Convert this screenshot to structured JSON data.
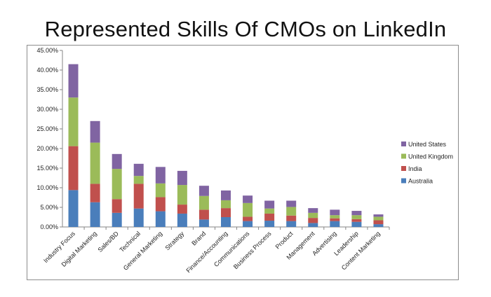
{
  "chart_data": {
    "type": "bar",
    "stacked": true,
    "title": "Represented Skills Of CMOs on LinkedIn",
    "xlabel": "",
    "ylabel": "",
    "ylim": [
      0,
      45
    ],
    "y_tick_values": [
      0,
      5,
      10,
      15,
      20,
      25,
      30,
      35,
      40,
      45
    ],
    "y_tick_labels": [
      "0.00%",
      "5.00%",
      "10.00%",
      "15.00%",
      "20.00%",
      "25.00%",
      "30.00%",
      "35.00%",
      "40.00%",
      "45.00%"
    ],
    "grid": false,
    "legend_position": "right",
    "categories": [
      "Industry Focus",
      "Digital Marketing",
      "Sales/BD",
      "Technical",
      "General Marketing",
      "Strategy",
      "Brand",
      "Finance/Accounting",
      "Communications",
      "Business Process",
      "Product",
      "Management",
      "Advertising",
      "Leadership",
      "Content Marketing"
    ],
    "series": [
      {
        "name": "Australia",
        "color": "#4a7ebb",
        "values": [
          9.4,
          6.3,
          3.6,
          4.7,
          4.0,
          3.4,
          1.9,
          2.5,
          1.5,
          1.6,
          1.5,
          1.0,
          1.5,
          1.3,
          0.7
        ]
      },
      {
        "name": "India",
        "color": "#c0504d",
        "values": [
          11.2,
          4.7,
          3.5,
          6.3,
          3.6,
          2.3,
          2.5,
          2.3,
          1.1,
          1.8,
          1.4,
          1.3,
          0.7,
          0.7,
          1.0
        ]
      },
      {
        "name": "United Kingdom",
        "color": "#9bbb59",
        "values": [
          12.4,
          10.5,
          7.7,
          2.0,
          3.5,
          5.0,
          3.5,
          2.0,
          3.5,
          1.3,
          2.2,
          1.3,
          0.8,
          1.0,
          0.9
        ]
      },
      {
        "name": "United States",
        "color": "#8064a2",
        "values": [
          8.5,
          5.5,
          3.8,
          3.1,
          4.2,
          3.6,
          2.6,
          2.5,
          1.9,
          2.0,
          1.6,
          1.2,
          1.4,
          1.1,
          0.6
        ]
      }
    ]
  }
}
